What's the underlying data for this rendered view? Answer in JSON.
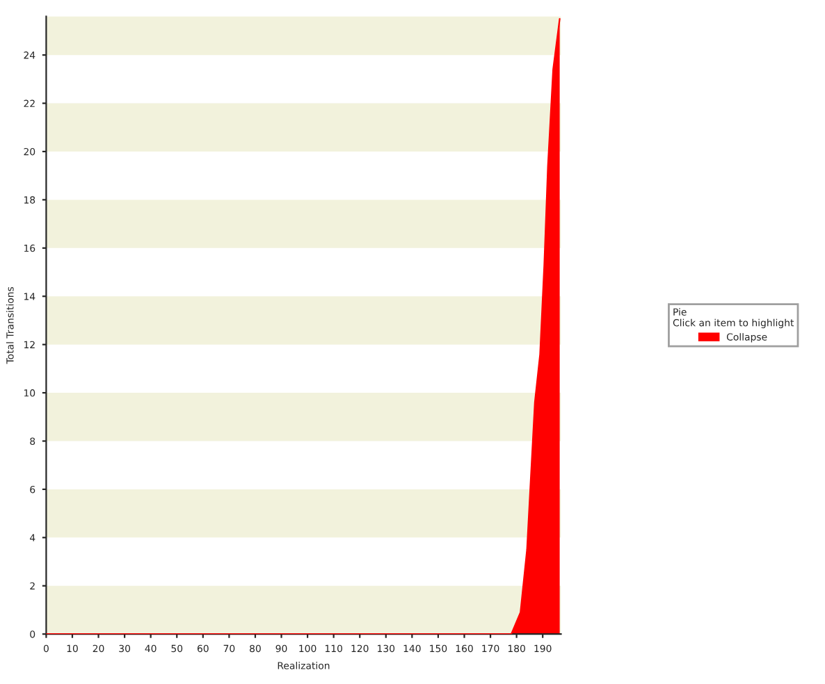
{
  "chart_data": {
    "type": "area",
    "xlabel": "Realization",
    "ylabel": "Total Transitions",
    "legend_title": "Pie\nClick an item to highlight",
    "series": [
      {
        "name": "Collapse",
        "color": "#ff0000",
        "x": [
          0,
          178,
          181.5,
          184,
          187,
          189,
          190.6,
          192,
          194,
          196.5
        ],
        "values": [
          0,
          0,
          0.9,
          3.5,
          9.6,
          11.6,
          15.3,
          19.4,
          23.4,
          25.5
        ]
      }
    ],
    "xlim": [
      0,
      197
    ],
    "ylim": [
      0,
      25.6
    ],
    "xticks": [
      0,
      10,
      20,
      30,
      40,
      50,
      60,
      70,
      80,
      90,
      100,
      110,
      120,
      130,
      140,
      150,
      160,
      170,
      180,
      190
    ],
    "yticks": [
      0,
      2,
      4,
      6,
      8,
      10,
      12,
      14,
      16,
      18,
      20,
      22,
      24
    ],
    "bands": [
      {
        "axis": "y",
        "from": 0,
        "to": 2,
        "color": "#f2f2dc"
      },
      {
        "axis": "y",
        "from": 4,
        "to": 6,
        "color": "#f2f2dc"
      },
      {
        "axis": "y",
        "from": 8,
        "to": 10,
        "color": "#f2f2dc"
      },
      {
        "axis": "y",
        "from": 12,
        "to": 14,
        "color": "#f2f2dc"
      },
      {
        "axis": "y",
        "from": 16,
        "to": 18,
        "color": "#f2f2dc"
      },
      {
        "axis": "y",
        "from": 20,
        "to": 22,
        "color": "#f2f2dc"
      },
      {
        "axis": "y",
        "from": 24,
        "to": 25.6,
        "color": "#f2f2dc"
      }
    ],
    "legend": "right",
    "grid": false
  }
}
